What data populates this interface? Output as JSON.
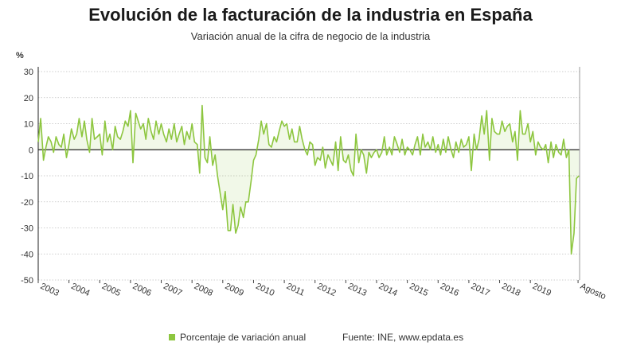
{
  "chart_data": {
    "type": "area",
    "title": "Evolución de la facturación de la industria en España",
    "subtitle": "Variación anual de la cifra de negocio de la industria",
    "ylabel": "%",
    "ylim": [
      -50,
      30
    ],
    "yticks": [
      30,
      20,
      10,
      0,
      -10,
      -20,
      -30,
      -40,
      -50
    ],
    "xlim": [
      2003,
      2020.6
    ],
    "xticks": [
      "2003",
      "2004",
      "2005",
      "2006",
      "2007",
      "2008",
      "2009",
      "2010",
      "2011",
      "2012",
      "2013",
      "2014",
      "2015",
      "2016",
      "2017",
      "2018",
      "2019",
      "Agosto"
    ],
    "grid": "horizontal",
    "legend_position": "bottom",
    "series": [
      {
        "name": "Porcentaje de variación anual",
        "color": "#8dc63f",
        "points": [
          [
            2003.0,
            3
          ],
          [
            2003.08,
            12
          ],
          [
            2003.17,
            -4
          ],
          [
            2003.25,
            1
          ],
          [
            2003.33,
            5
          ],
          [
            2003.42,
            3
          ],
          [
            2003.5,
            -1
          ],
          [
            2003.58,
            5
          ],
          [
            2003.67,
            2
          ],
          [
            2003.75,
            1
          ],
          [
            2003.83,
            6
          ],
          [
            2003.92,
            -3
          ],
          [
            2004.0,
            2
          ],
          [
            2004.08,
            8
          ],
          [
            2004.17,
            4
          ],
          [
            2004.25,
            6
          ],
          [
            2004.33,
            12
          ],
          [
            2004.42,
            5
          ],
          [
            2004.5,
            11
          ],
          [
            2004.58,
            4
          ],
          [
            2004.67,
            -1
          ],
          [
            2004.75,
            12
          ],
          [
            2004.83,
            4
          ],
          [
            2004.92,
            5
          ],
          [
            2005.0,
            6
          ],
          [
            2005.08,
            -2
          ],
          [
            2005.17,
            11
          ],
          [
            2005.25,
            3
          ],
          [
            2005.33,
            6
          ],
          [
            2005.42,
            0
          ],
          [
            2005.5,
            9
          ],
          [
            2005.58,
            5
          ],
          [
            2005.67,
            4
          ],
          [
            2005.75,
            7
          ],
          [
            2005.83,
            11
          ],
          [
            2005.92,
            9
          ],
          [
            2006.0,
            15
          ],
          [
            2006.08,
            -5
          ],
          [
            2006.17,
            14
          ],
          [
            2006.25,
            11
          ],
          [
            2006.33,
            8
          ],
          [
            2006.42,
            10
          ],
          [
            2006.5,
            4
          ],
          [
            2006.58,
            12
          ],
          [
            2006.67,
            7
          ],
          [
            2006.75,
            4
          ],
          [
            2006.83,
            11
          ],
          [
            2006.92,
            6
          ],
          [
            2007.0,
            10
          ],
          [
            2007.08,
            6
          ],
          [
            2007.17,
            3
          ],
          [
            2007.25,
            8
          ],
          [
            2007.33,
            4
          ],
          [
            2007.42,
            10
          ],
          [
            2007.5,
            3
          ],
          [
            2007.58,
            6
          ],
          [
            2007.67,
            9
          ],
          [
            2007.75,
            2
          ],
          [
            2007.83,
            7
          ],
          [
            2007.92,
            4
          ],
          [
            2008.0,
            10
          ],
          [
            2008.08,
            3
          ],
          [
            2008.17,
            2
          ],
          [
            2008.25,
            -9
          ],
          [
            2008.33,
            17
          ],
          [
            2008.42,
            -3
          ],
          [
            2008.5,
            -5
          ],
          [
            2008.58,
            5
          ],
          [
            2008.67,
            -6
          ],
          [
            2008.75,
            -2
          ],
          [
            2008.83,
            -10
          ],
          [
            2008.92,
            -17
          ],
          [
            2009.0,
            -23
          ],
          [
            2009.08,
            -16
          ],
          [
            2009.17,
            -31
          ],
          [
            2009.25,
            -31
          ],
          [
            2009.33,
            -21
          ],
          [
            2009.42,
            -32
          ],
          [
            2009.5,
            -29
          ],
          [
            2009.58,
            -22
          ],
          [
            2009.67,
            -26
          ],
          [
            2009.75,
            -20
          ],
          [
            2009.83,
            -20
          ],
          [
            2009.92,
            -12
          ],
          [
            2010.0,
            -4
          ],
          [
            2010.08,
            -2
          ],
          [
            2010.17,
            4
          ],
          [
            2010.25,
            11
          ],
          [
            2010.33,
            6
          ],
          [
            2010.42,
            10
          ],
          [
            2010.5,
            2
          ],
          [
            2010.58,
            1
          ],
          [
            2010.67,
            5
          ],
          [
            2010.75,
            3
          ],
          [
            2010.83,
            7
          ],
          [
            2010.92,
            11
          ],
          [
            2011.0,
            9
          ],
          [
            2011.08,
            10
          ],
          [
            2011.17,
            4
          ],
          [
            2011.25,
            8
          ],
          [
            2011.33,
            3
          ],
          [
            2011.42,
            3
          ],
          [
            2011.5,
            9
          ],
          [
            2011.58,
            4
          ],
          [
            2011.67,
            0
          ],
          [
            2011.75,
            -2
          ],
          [
            2011.83,
            3
          ],
          [
            2011.92,
            2
          ],
          [
            2012.0,
            -6
          ],
          [
            2012.08,
            -3
          ],
          [
            2012.17,
            -4
          ],
          [
            2012.25,
            1
          ],
          [
            2012.33,
            -7
          ],
          [
            2012.42,
            -2
          ],
          [
            2012.5,
            -4
          ],
          [
            2012.58,
            -6
          ],
          [
            2012.67,
            3
          ],
          [
            2012.75,
            -8
          ],
          [
            2012.83,
            5
          ],
          [
            2012.92,
            -4
          ],
          [
            2013.0,
            -5
          ],
          [
            2013.08,
            -2
          ],
          [
            2013.17,
            -8
          ],
          [
            2013.25,
            -10
          ],
          [
            2013.33,
            6
          ],
          [
            2013.42,
            -5
          ],
          [
            2013.5,
            0
          ],
          [
            2013.58,
            -2
          ],
          [
            2013.67,
            -9
          ],
          [
            2013.75,
            -1
          ],
          [
            2013.83,
            -3
          ],
          [
            2013.92,
            -1
          ],
          [
            2014.0,
            0
          ],
          [
            2014.08,
            -3
          ],
          [
            2014.17,
            -1
          ],
          [
            2014.25,
            5
          ],
          [
            2014.33,
            -2
          ],
          [
            2014.42,
            1
          ],
          [
            2014.5,
            -2
          ],
          [
            2014.58,
            5
          ],
          [
            2014.67,
            2
          ],
          [
            2014.75,
            -1
          ],
          [
            2014.83,
            4
          ],
          [
            2014.92,
            -2
          ],
          [
            2015.0,
            1
          ],
          [
            2015.08,
            0
          ],
          [
            2015.17,
            -2
          ],
          [
            2015.25,
            2
          ],
          [
            2015.33,
            5
          ],
          [
            2015.42,
            -2
          ],
          [
            2015.5,
            6
          ],
          [
            2015.58,
            1
          ],
          [
            2015.67,
            3
          ],
          [
            2015.75,
            0
          ],
          [
            2015.83,
            5
          ],
          [
            2015.92,
            -1
          ],
          [
            2016.0,
            2
          ],
          [
            2016.08,
            -2
          ],
          [
            2016.17,
            4
          ],
          [
            2016.25,
            -1
          ],
          [
            2016.33,
            5
          ],
          [
            2016.42,
            0
          ],
          [
            2016.5,
            -3
          ],
          [
            2016.58,
            3
          ],
          [
            2016.67,
            -1
          ],
          [
            2016.75,
            4
          ],
          [
            2016.83,
            1
          ],
          [
            2016.92,
            2
          ],
          [
            2017.0,
            5
          ],
          [
            2017.08,
            -8
          ],
          [
            2017.17,
            6
          ],
          [
            2017.25,
            0
          ],
          [
            2017.33,
            4
          ],
          [
            2017.42,
            13
          ],
          [
            2017.5,
            6
          ],
          [
            2017.58,
            15
          ],
          [
            2017.67,
            -4
          ],
          [
            2017.75,
            12
          ],
          [
            2017.83,
            7
          ],
          [
            2017.92,
            6
          ],
          [
            2018.0,
            6
          ],
          [
            2018.08,
            11
          ],
          [
            2018.17,
            7
          ],
          [
            2018.25,
            9
          ],
          [
            2018.33,
            10
          ],
          [
            2018.42,
            3
          ],
          [
            2018.5,
            7
          ],
          [
            2018.58,
            -4
          ],
          [
            2018.67,
            15
          ],
          [
            2018.75,
            6
          ],
          [
            2018.83,
            6
          ],
          [
            2018.92,
            10
          ],
          [
            2019.0,
            3
          ],
          [
            2019.08,
            7
          ],
          [
            2019.17,
            -2
          ],
          [
            2019.25,
            3
          ],
          [
            2019.33,
            1
          ],
          [
            2019.42,
            0
          ],
          [
            2019.5,
            2
          ],
          [
            2019.58,
            -5
          ],
          [
            2019.67,
            3
          ],
          [
            2019.75,
            -3
          ],
          [
            2019.83,
            2
          ],
          [
            2019.92,
            -1
          ],
          [
            2020.0,
            -2
          ],
          [
            2020.08,
            4
          ],
          [
            2020.17,
            -3
          ],
          [
            2020.25,
            0
          ],
          [
            2020.33,
            -40
          ],
          [
            2020.42,
            -32
          ],
          [
            2020.5,
            -11
          ],
          [
            2020.58,
            -10
          ]
        ]
      }
    ]
  },
  "legend": {
    "label": "Porcentaje de variación anual",
    "color": "#8dc63f"
  },
  "source": "Fuente: INE, www.epdata.es"
}
